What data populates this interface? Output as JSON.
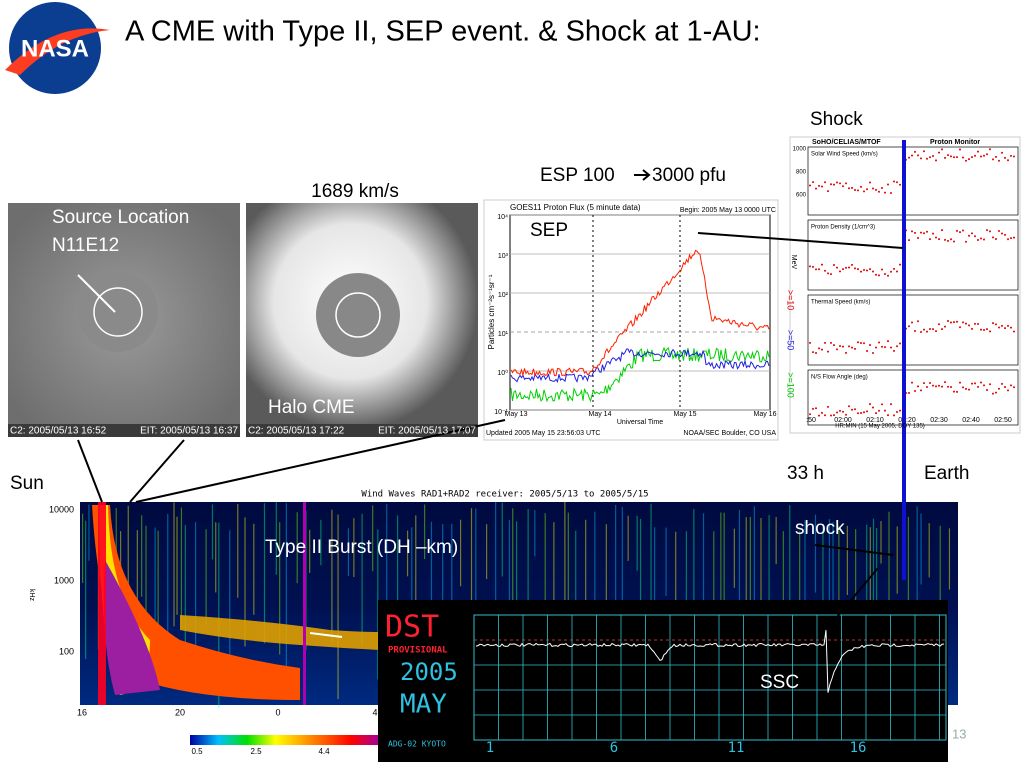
{
  "title": "A CME with Type II, SEP event. & Shock at 1-AU:",
  "logo": "NASA",
  "annotations": {
    "source_location": "Source Location",
    "source_coords": "N11E12",
    "speed": "1689 km/s",
    "halo_cme": "Halo CME",
    "esp": "ESP 100",
    "esp_pfu": "3000 pfu",
    "sep": "SEP",
    "shock_top": "Shock",
    "delay": "33 h",
    "earth": "Earth",
    "sun": "Sun",
    "type2": "Type II Burst (DH –km)",
    "shock_low": "shock",
    "ssc": "SSC",
    "page": "13"
  },
  "lasco1": {
    "c2": "C2: 2005/05/13 16:52",
    "eit": "EIT: 2005/05/13 16:37"
  },
  "lasco2": {
    "c2": "C2: 2005/05/13 17:22",
    "eit": "EIT: 2005/05/13 17:07"
  },
  "goes": {
    "title": "GOES11 Proton Flux (5 minute data)",
    "begin": "Begin: 2005 May 13 0000 UTC",
    "ylabel": "Particles cm⁻²s⁻¹sr⁻¹",
    "yticks": [
      "10⁴",
      "10³",
      "10²",
      "10¹",
      "10⁰",
      "10⁻¹"
    ],
    "xticks": [
      "May 13",
      "May 14",
      "May 15",
      "May 16"
    ],
    "xlabel": "Universal Time",
    "updated": "Updated 2005 May 15 23:56:03 UTC",
    "source": "NOAA/SEC Boulder, CO USA",
    "energies": [
      ">=10",
      ">=50",
      ">=100"
    ],
    "unit": "MeV"
  },
  "pm": {
    "header_left": "SoHO/CELIAS/MTOF",
    "header_right": "Proton Monitor",
    "panels": [
      "Solar Wind Speed (km/s)",
      "Proton Density (1/cm^3)",
      "Thermal Speed (km/s)",
      "N/S Flow Angle (deg)"
    ],
    "yticks": [
      "1000",
      "800",
      "600"
    ],
    "xticks": [
      ":50",
      "02:00",
      "02:10",
      "02:20",
      "02:30",
      "02:40",
      "02:50"
    ],
    "xlabel": "HR:MIN (15 May 2005, DOY 135)"
  },
  "waves": {
    "title": "Wind Waves RAD1+RAD2 receiver: 2005/5/13 to 2005/5/15",
    "yticks": [
      "10000",
      "1000",
      "100"
    ],
    "ylabel": "kHz",
    "xticks": [
      "16",
      "20",
      "0",
      "4"
    ],
    "colorbar": [
      "0.5",
      "2.5",
      "4.4"
    ]
  },
  "dst": {
    "title": "DST",
    "subtitle": "PROVISIONAL",
    "year": "2005",
    "month": "MAY",
    "credit": "ADG-02 KYOTO",
    "xticks": [
      "1",
      "6",
      "11",
      "16"
    ]
  }
}
